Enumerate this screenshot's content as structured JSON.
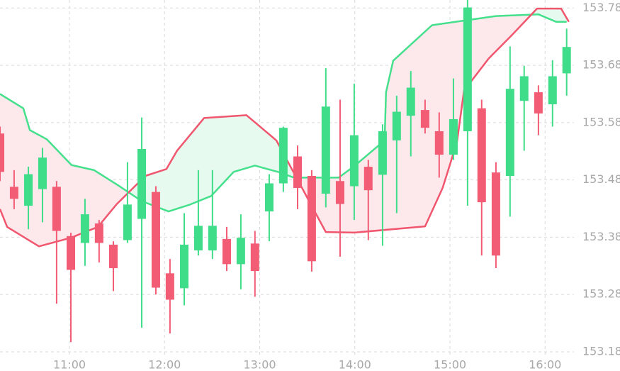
{
  "chart_data": {
    "type": "candlestick",
    "x": [
      616.2,
      625.1,
      634.1,
      643.0,
      651.9,
      660.9,
      669.8,
      678.7,
      687.7,
      696.6,
      705.6,
      714.5,
      723.4,
      732.4,
      741.3,
      750.2,
      759.2,
      768.1,
      777.0,
      786.0,
      794.9,
      803.9,
      812.8,
      821.7,
      830.7,
      839.6,
      848.5,
      857.5,
      866.4,
      875.3,
      884.3,
      893.2,
      902.2,
      911.1,
      920.0,
      929.0,
      937.9,
      946.8,
      955.8,
      964.7,
      973.6
    ],
    "open": [
      153.561,
      153.468,
      153.435,
      153.464,
      153.468,
      153.382,
      153.37,
      153.404,
      153.367,
      153.375,
      153.412,
      153.459,
      153.317,
      153.291,
      153.357,
      153.357,
      153.377,
      153.333,
      153.369,
      153.425,
      153.474,
      153.521,
      153.487,
      153.456,
      153.478,
      153.469,
      153.503,
      153.489,
      153.549,
      153.592,
      153.602,
      153.565,
      153.524,
      153.565,
      153.605,
      153.493,
      153.487,
      153.618,
      153.633,
      153.612,
      153.666
    ],
    "high": [
      153.573,
      153.497,
      153.503,
      153.536,
      153.478,
      153.388,
      153.447,
      153.41,
      153.373,
      153.511,
      153.589,
      153.469,
      153.342,
      153.422,
      153.497,
      153.497,
      153.398,
      153.42,
      153.391,
      153.49,
      153.573,
      153.54,
      153.497,
      153.675,
      153.62,
      153.648,
      153.515,
      153.577,
      153.627,
      153.67,
      153.62,
      153.598,
      153.657,
      153.794,
      153.62,
      153.511,
      153.713,
      153.679,
      153.645,
      153.689,
      153.744
    ],
    "low": [
      153.478,
      153.429,
      153.394,
      153.406,
      153.264,
      153.197,
      153.33,
      153.336,
      153.286,
      153.37,
      153.222,
      153.28,
      153.212,
      153.261,
      153.348,
      153.342,
      153.321,
      153.289,
      153.276,
      153.373,
      153.459,
      153.429,
      153.32,
      153.432,
      153.346,
      153.41,
      153.375,
      153.365,
      153.422,
      153.521,
      153.561,
      153.484,
      153.515,
      153.435,
      153.348,
      153.326,
      153.416,
      153.531,
      153.558,
      153.573,
      153.627
    ],
    "close": [
      153.494,
      153.447,
      153.49,
      153.519,
      153.391,
      153.323,
      153.42,
      153.37,
      153.326,
      153.437,
      153.534,
      153.292,
      153.271,
      153.367,
      153.4,
      153.4,
      153.333,
      153.379,
      153.321,
      153.474,
      153.571,
      153.466,
      153.338,
      153.608,
      153.438,
      153.558,
      153.462,
      153.565,
      153.599,
      153.641,
      153.571,
      153.524,
      153.586,
      153.781,
      153.441,
      153.348,
      153.639,
      153.661,
      153.596,
      153.661,
      153.712
    ],
    "up_color": "#3fdd89",
    "down_color": "#f25c75",
    "series": [
      {
        "color": "#45e08c",
        "x": [
          616.2,
          630.9,
          635.0,
          645.7,
          661.3,
          675.6,
          689.9,
          705.6,
          722.5,
          736.0,
          749.4,
          763.6,
          777.0,
          792.7,
          801.6,
          829.8,
          839.6,
          858.8,
          859.7,
          864.2,
          888.7,
          929.0,
          955.8,
          966.9,
          973.6
        ],
        "values": [
          153.63,
          153.605,
          153.567,
          153.551,
          153.506,
          153.497,
          153.472,
          153.443,
          153.425,
          153.437,
          153.452,
          153.494,
          153.505,
          153.493,
          153.484,
          153.484,
          153.504,
          153.549,
          153.633,
          153.688,
          153.75,
          153.766,
          153.769,
          153.756,
          153.756
        ]
      },
      {
        "color": "#f0566e",
        "x": [
          616.2,
          620.7,
          640.8,
          660.9,
          677.9,
          689.9,
          707.8,
          721.2,
          727.9,
          744.9,
          771.7,
          790.5,
          821.7,
          839.6,
          884.3,
          895.4,
          904.4,
          908.9,
          924.5,
          938.8,
          954.9,
          970.1,
          975.0
        ],
        "values": [
          153.429,
          153.398,
          153.364,
          153.379,
          153.398,
          153.438,
          153.487,
          153.499,
          153.531,
          153.588,
          153.593,
          153.549,
          153.389,
          153.388,
          153.399,
          153.466,
          153.546,
          153.636,
          153.692,
          153.732,
          153.779,
          153.779,
          153.756
        ]
      }
    ],
    "cloud_colors": [
      "#fde8ec",
      "#e6faef"
    ],
    "xlim": [
      616.2,
      978.2
    ],
    "xticks": [
      {
        "value": 660,
        "label": "11:00"
      },
      {
        "value": 720,
        "label": "12:00"
      },
      {
        "value": 780,
        "label": "13:00"
      },
      {
        "value": 840,
        "label": "14:00"
      },
      {
        "value": 900,
        "label": "15:00"
      },
      {
        "value": 960,
        "label": "16:00"
      }
    ],
    "ylim": [
      153.175,
      153.794
    ],
    "yticks": [
      153.18,
      153.28,
      153.38,
      153.48,
      153.58,
      153.68,
      153.78
    ],
    "grid": true
  }
}
